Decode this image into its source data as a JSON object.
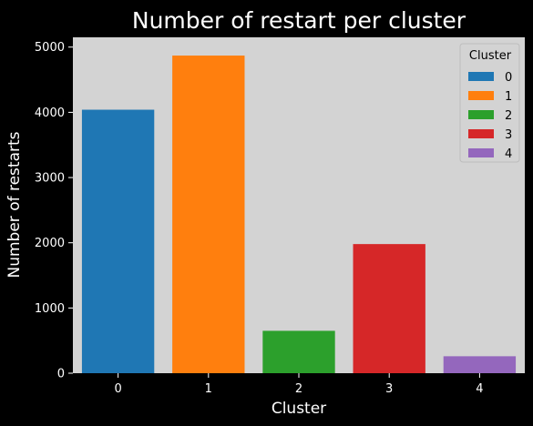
{
  "chart_data": {
    "type": "bar",
    "title": "Number of restart per cluster",
    "xlabel": "Cluster",
    "ylabel": "Number of restarts",
    "categories": [
      "0",
      "1",
      "2",
      "3",
      "4"
    ],
    "values": [
      4040,
      4870,
      650,
      1980,
      260
    ],
    "colors": [
      "#1f77b4",
      "#ff7f0e",
      "#2ca02c",
      "#d62728",
      "#9467bd"
    ],
    "yticks": [
      0,
      1000,
      2000,
      3000,
      4000,
      5000
    ],
    "ylim": [
      0,
      5150
    ],
    "grid": false,
    "background": "#d3d3d3",
    "figure_background": "#000000",
    "legend": {
      "title": "Cluster",
      "placement": "top-right",
      "entries": [
        "0",
        "1",
        "2",
        "3",
        "4"
      ]
    }
  }
}
